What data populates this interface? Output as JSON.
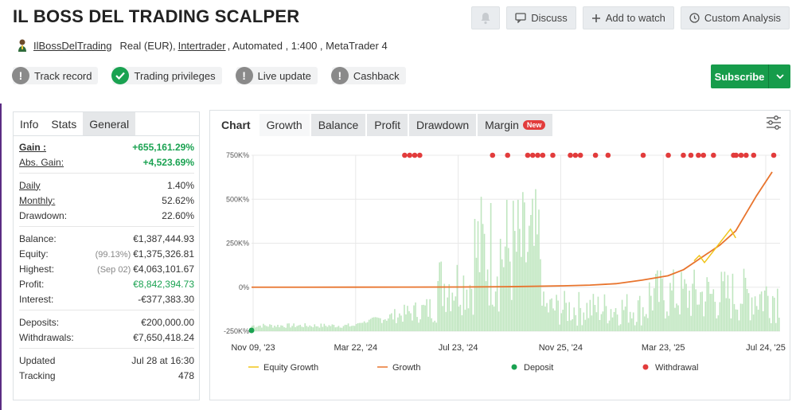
{
  "header": {
    "title": "IL BOSS DEL TRADING SCALPER",
    "discuss_label": "Discuss",
    "watch_label": "Add to watch",
    "analysis_label": "Custom Analysis"
  },
  "meta": {
    "owner": "IlBossDelTrading",
    "account_type": "Real (EUR),",
    "broker": "Intertrader",
    "details": ", Automated , 1:400 , MetaTrader 4"
  },
  "badges": [
    {
      "label": "Track record",
      "icon": "exclamation-icon",
      "status": "gray"
    },
    {
      "label": "Trading privileges",
      "icon": "check-icon",
      "status": "green"
    },
    {
      "label": "Live update",
      "icon": "exclamation-icon",
      "status": "gray"
    },
    {
      "label": "Cashback",
      "icon": "exclamation-icon",
      "status": "gray"
    }
  ],
  "subscribe": {
    "label": "Subscribe"
  },
  "left_tabs": [
    "Info",
    "Stats",
    "General"
  ],
  "stats": {
    "gain": {
      "label": "Gain :",
      "value": "+655,161.29%"
    },
    "abs_gain": {
      "label": "Abs. Gain:",
      "value": "+4,523.69%"
    },
    "daily": {
      "label": "Daily",
      "value": "1.40%"
    },
    "monthly": {
      "label": "Monthly:",
      "value": "52.62%"
    },
    "drawdown": {
      "label": "Drawdown:",
      "value": "22.60%"
    },
    "balance": {
      "label": "Balance:",
      "value": "€1,387,444.93"
    },
    "equity": {
      "label": "Equity:",
      "note": "(99.13%)",
      "value": "€1,375,326.81"
    },
    "highest": {
      "label": "Highest:",
      "note": "(Sep 02)",
      "value": "€4,063,101.67"
    },
    "profit": {
      "label": "Profit:",
      "value": "€8,842,394.73"
    },
    "interest": {
      "label": "Interest:",
      "value": "-€377,383.30"
    },
    "deposits": {
      "label": "Deposits:",
      "value": "€200,000.00"
    },
    "withdrawals": {
      "label": "Withdrawals:",
      "value": "€7,650,418.24"
    },
    "updated": {
      "label": "Updated",
      "value": "Jul 28 at 16:30"
    },
    "tracking": {
      "label": "Tracking",
      "value": "478"
    }
  },
  "chart_tabs": [
    "Chart",
    "Growth",
    "Balance",
    "Profit",
    "Drawdown",
    "Margin"
  ],
  "new_badge": "New",
  "colors": {
    "accent_green": "#169c4b",
    "growth": "#e8742d",
    "equity": "#f0c419",
    "deposit": "#1aa251",
    "withdrawal": "#e23c3c",
    "volume": "#bfe6bf"
  },
  "chart_data": {
    "type": "line",
    "y_ticks": [
      "750K%",
      "500K%",
      "250K%",
      "0%",
      "-250K%"
    ],
    "y_tick_values": [
      750000,
      500000,
      250000,
      0,
      -250000
    ],
    "x_ticks": [
      "Nov 09, '23",
      "Mar 22, '24",
      "Jul 23, '24",
      "Nov 25, '24",
      "Mar 23, '25",
      "Jul 24, '25"
    ],
    "ylim": [
      -250000,
      750000
    ],
    "legend": [
      "Equity Growth",
      "Growth",
      "Deposit",
      "Withdrawal"
    ],
    "series": [
      {
        "name": "Growth",
        "x": [
          0,
          0.1,
          0.2,
          0.3,
          0.4,
          0.5,
          0.6,
          0.65,
          0.7,
          0.75,
          0.8,
          0.83,
          0.86,
          0.9,
          0.93,
          0.95,
          0.97,
          1.0
        ],
        "values": [
          0,
          0,
          200,
          500,
          1000,
          3000,
          8000,
          12000,
          20000,
          40000,
          65000,
          100000,
          160000,
          240000,
          320000,
          420000,
          520000,
          655161
        ]
      },
      {
        "name": "Equity Growth",
        "x": [
          0.85,
          0.86,
          0.87,
          0.92,
          0.93
        ],
        "values": [
          150000,
          180000,
          140000,
          330000,
          280000
        ]
      }
    ],
    "deposits_x": [
      0
    ],
    "withdrawals_x": [
      0.305,
      0.315,
      0.325,
      0.335,
      0.48,
      0.51,
      0.55,
      0.56,
      0.57,
      0.58,
      0.6,
      0.635,
      0.645,
      0.655,
      0.685,
      0.71,
      0.78,
      0.83,
      0.86,
      0.875,
      0.89,
      0.9,
      0.92,
      0.96,
      0.965,
      0.975,
      0.985,
      1.0,
      1.04
    ]
  }
}
